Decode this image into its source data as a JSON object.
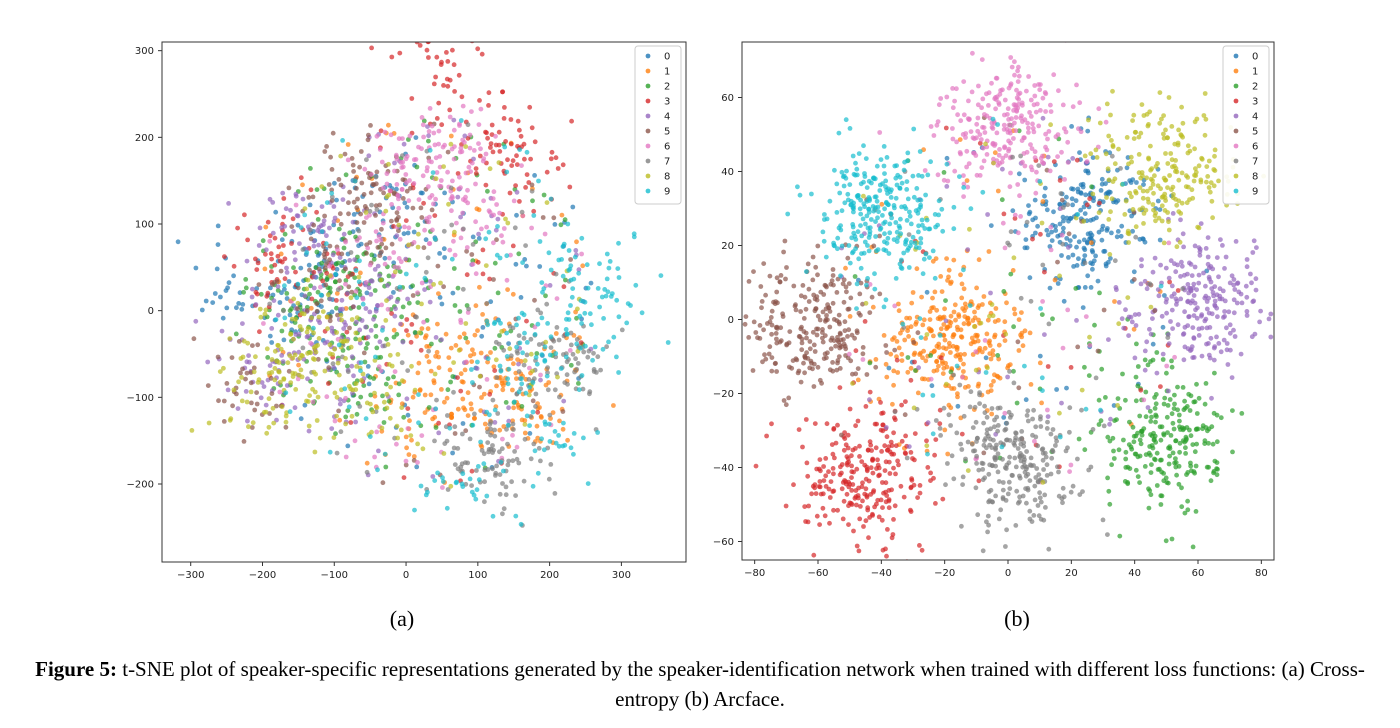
{
  "chart_data": [
    {
      "type": "scatter",
      "panel": "(a)",
      "title": "",
      "xlabel": "",
      "ylabel": "",
      "xlim": [
        -340,
        390
      ],
      "ylim": [
        -290,
        310
      ],
      "xticks": [
        -300,
        -200,
        -100,
        0,
        100,
        200,
        300
      ],
      "yticks": [
        -200,
        -100,
        0,
        100,
        200,
        300
      ],
      "grid": false,
      "legend": {
        "placement": "top-right",
        "entries": [
          "0",
          "1",
          "2",
          "3",
          "4",
          "5",
          "6",
          "7",
          "8",
          "9"
        ]
      },
      "series": [
        {
          "name": "0",
          "color": "#1f77b4",
          "centers": [
            [
              -220,
              28
            ],
            [
              0,
              130
            ],
            [
              -100,
              60
            ],
            [
              -150,
              10
            ]
          ],
          "n": 210
        },
        {
          "name": "1",
          "color": "#ff7f0e",
          "centers": [
            [
              120,
              -90
            ],
            [
              180,
              -110
            ],
            [
              80,
              -40
            ],
            [
              30,
              -110
            ]
          ],
          "n": 230
        },
        {
          "name": "2",
          "color": "#2ca02c",
          "centers": [
            [
              -55,
              -70
            ],
            [
              -100,
              40
            ],
            [
              -150,
              0
            ],
            [
              -20,
              10
            ]
          ],
          "n": 250
        },
        {
          "name": "3",
          "color": "#d62728",
          "centers": [
            [
              115,
              200
            ],
            [
              50,
              280
            ],
            [
              -170,
              60
            ],
            [
              150,
              160
            ]
          ],
          "n": 220
        },
        {
          "name": "4",
          "color": "#9467bd",
          "centers": [
            [
              -110,
              -40
            ],
            [
              -200,
              -60
            ],
            [
              -50,
              20
            ],
            [
              -140,
              100
            ]
          ],
          "n": 250
        },
        {
          "name": "5",
          "color": "#8c564b",
          "centers": [
            [
              -230,
              -90
            ],
            [
              -30,
              110
            ],
            [
              -120,
              50
            ],
            [
              -60,
              140
            ]
          ],
          "n": 200
        },
        {
          "name": "6",
          "color": "#e377c2",
          "centers": [
            [
              55,
              190
            ],
            [
              0,
              160
            ],
            [
              70,
              120
            ],
            [
              -40,
              60
            ]
          ],
          "n": 250
        },
        {
          "name": "7",
          "color": "#7f7f7f",
          "centers": [
            [
              240,
              -70
            ],
            [
              140,
              -180
            ],
            [
              100,
              -150
            ],
            [
              180,
              -50
            ]
          ],
          "n": 230
        },
        {
          "name": "8",
          "color": "#bcbd22",
          "centers": [
            [
              -160,
              -60
            ],
            [
              -190,
              -100
            ],
            [
              -120,
              -20
            ],
            [
              -60,
              -100
            ]
          ],
          "n": 240
        },
        {
          "name": "9",
          "color": "#17becf",
          "centers": [
            [
              250,
              -20
            ],
            [
              200,
              -140
            ],
            [
              260,
              50
            ],
            [
              80,
              -200
            ],
            [
              150,
              -30
            ]
          ],
          "n": 250
        }
      ]
    },
    {
      "type": "scatter",
      "panel": "(b)",
      "title": "",
      "xlabel": "",
      "ylabel": "",
      "xlim": [
        -84,
        84
      ],
      "ylim": [
        -65,
        75
      ],
      "xticks": [
        -80,
        -60,
        -40,
        -20,
        0,
        20,
        40,
        60,
        80
      ],
      "yticks": [
        -60,
        -40,
        -20,
        0,
        20,
        40,
        60
      ],
      "grid": false,
      "legend": {
        "placement": "top-right",
        "entries": [
          "0",
          "1",
          "2",
          "3",
          "4",
          "5",
          "6",
          "7",
          "8",
          "9"
        ]
      },
      "series": [
        {
          "name": "0",
          "color": "#1f77b4",
          "centers": [
            [
              25,
              28
            ]
          ],
          "n": 240
        },
        {
          "name": "1",
          "color": "#ff7f0e",
          "centers": [
            [
              -18,
              -5
            ]
          ],
          "n": 300
        },
        {
          "name": "2",
          "color": "#2ca02c",
          "centers": [
            [
              50,
              -32
            ]
          ],
          "n": 280
        },
        {
          "name": "3",
          "color": "#d62728",
          "centers": [
            [
              -45,
              -42
            ]
          ],
          "n": 300
        },
        {
          "name": "4",
          "color": "#9467bd",
          "centers": [
            [
              60,
              5
            ]
          ],
          "n": 280
        },
        {
          "name": "5",
          "color": "#8c564b",
          "centers": [
            [
              -62,
              -2
            ]
          ],
          "n": 270
        },
        {
          "name": "6",
          "color": "#e377c2",
          "centers": [
            [
              0,
              52
            ]
          ],
          "n": 280
        },
        {
          "name": "7",
          "color": "#7f7f7f",
          "centers": [
            [
              2,
              -38
            ]
          ],
          "n": 290
        },
        {
          "name": "8",
          "color": "#bcbd22",
          "centers": [
            [
              50,
              40
            ]
          ],
          "n": 250
        },
        {
          "name": "9",
          "color": "#17becf",
          "centers": [
            [
              -40,
              28
            ]
          ],
          "n": 300
        }
      ]
    }
  ],
  "panel_labels": {
    "a": "(a)",
    "b": "(b)"
  },
  "caption": {
    "prefix": "Figure 5:",
    "text": " t-SNE plot of speaker-specific representations generated by the speaker-identification network when trained with different loss functions: (a) Cross-entropy (b) Arcface."
  }
}
